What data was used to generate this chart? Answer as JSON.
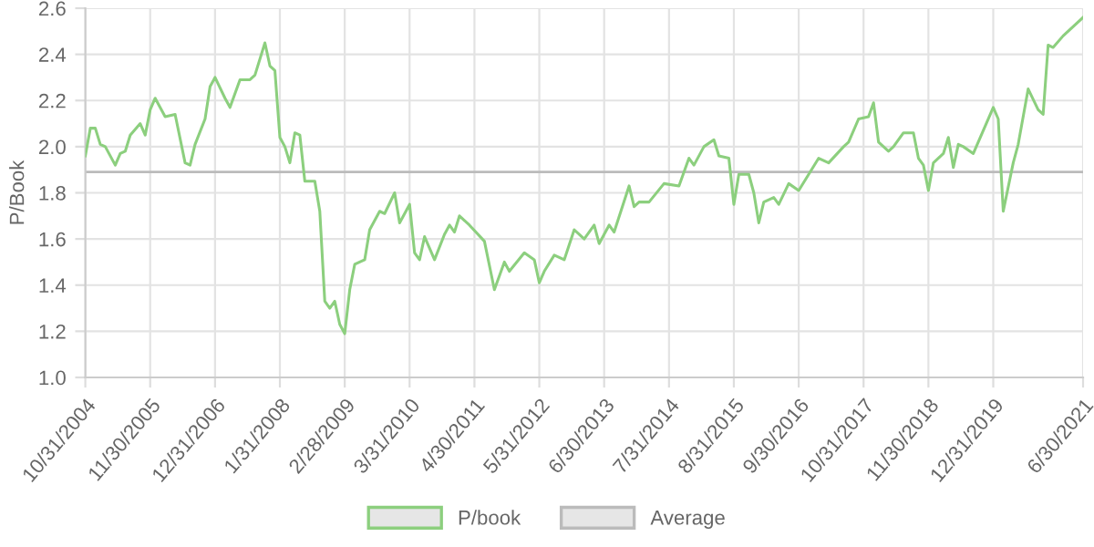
{
  "chart_data": {
    "type": "line",
    "ylabel": "P/Book",
    "x": [
      "2004-10",
      "2004-11",
      "2004-12",
      "2005-01",
      "2005-02",
      "2005-04",
      "2005-05",
      "2005-06",
      "2005-07",
      "2005-09",
      "2005-10",
      "2005-11",
      "2005-12",
      "2006-02",
      "2006-04",
      "2006-06",
      "2006-07",
      "2006-08",
      "2006-10",
      "2006-11",
      "2006-12",
      "2007-02",
      "2007-03",
      "2007-05",
      "2007-07",
      "2007-08",
      "2007-10",
      "2007-11",
      "2007-12",
      "2008-01",
      "2008-02",
      "2008-03",
      "2008-04",
      "2008-05",
      "2008-06",
      "2008-08",
      "2008-09",
      "2008-10",
      "2008-11",
      "2008-12",
      "2009-01",
      "2009-02",
      "2009-03",
      "2009-04",
      "2009-06",
      "2009-07",
      "2009-09",
      "2009-10",
      "2009-12",
      "2010-01",
      "2010-03",
      "2010-04",
      "2010-05",
      "2010-06",
      "2010-08",
      "2010-10",
      "2010-11",
      "2010-12",
      "2011-01",
      "2011-03",
      "2011-06",
      "2011-08",
      "2011-10",
      "2011-11",
      "2012-02",
      "2012-04",
      "2012-05",
      "2012-06",
      "2012-08",
      "2012-10",
      "2012-12",
      "2013-02",
      "2013-04",
      "2013-05",
      "2013-07",
      "2013-08",
      "2013-11",
      "2013-12",
      "2014-01",
      "2014-03",
      "2014-06",
      "2014-09",
      "2014-11",
      "2014-12",
      "2015-02",
      "2015-04",
      "2015-05",
      "2015-07",
      "2015-08",
      "2015-09",
      "2015-11",
      "2015-12",
      "2016-01",
      "2016-02",
      "2016-04",
      "2016-05",
      "2016-07",
      "2016-09",
      "2017-01",
      "2017-03",
      "2017-06",
      "2017-07",
      "2017-09",
      "2017-11",
      "2017-12",
      "2018-01",
      "2018-03",
      "2018-04",
      "2018-06",
      "2018-08",
      "2018-09",
      "2018-10",
      "2018-11",
      "2018-12",
      "2019-02",
      "2019-03",
      "2019-04",
      "2019-05",
      "2019-06",
      "2019-08",
      "2019-12",
      "2020-01",
      "2020-02",
      "2020-04",
      "2020-05",
      "2020-07",
      "2020-09",
      "2020-10",
      "2020-11",
      "2020-12",
      "2021-02",
      "2021-06"
    ],
    "series": [
      {
        "name": "P/book",
        "color": "#8ccf7e",
        "values": [
          1.96,
          2.08,
          2.08,
          2.01,
          2.0,
          1.92,
          1.97,
          1.98,
          2.05,
          2.1,
          2.05,
          2.16,
          2.21,
          2.13,
          2.14,
          1.93,
          1.92,
          2.01,
          2.12,
          2.26,
          2.3,
          2.21,
          2.17,
          2.29,
          2.29,
          2.31,
          2.45,
          2.35,
          2.33,
          2.04,
          2.0,
          1.93,
          2.06,
          2.05,
          1.85,
          1.85,
          1.72,
          1.33,
          1.3,
          1.33,
          1.23,
          1.19,
          1.38,
          1.49,
          1.51,
          1.64,
          1.72,
          1.71,
          1.8,
          1.67,
          1.75,
          1.54,
          1.51,
          1.61,
          1.51,
          1.62,
          1.66,
          1.63,
          1.7,
          1.66,
          1.59,
          1.38,
          1.5,
          1.46,
          1.54,
          1.51,
          1.41,
          1.46,
          1.53,
          1.51,
          1.64,
          1.6,
          1.66,
          1.58,
          1.66,
          1.63,
          1.83,
          1.74,
          1.76,
          1.76,
          1.84,
          1.83,
          1.95,
          1.92,
          2.0,
          2.03,
          1.96,
          1.95,
          1.75,
          1.88,
          1.88,
          1.8,
          1.67,
          1.76,
          1.78,
          1.75,
          1.84,
          1.81,
          1.95,
          1.93,
          2.0,
          2.02,
          2.12,
          2.13,
          2.19,
          2.02,
          1.98,
          2.0,
          2.06,
          2.06,
          1.95,
          1.92,
          1.81,
          1.93,
          1.97,
          2.04,
          1.91,
          2.01,
          2.0,
          1.97,
          2.17,
          2.12,
          1.72,
          1.93,
          2.01,
          2.25,
          2.16,
          2.14,
          2.44,
          2.43,
          2.48,
          2.56
        ]
      }
    ],
    "ref_lines": [
      {
        "axis": "y",
        "value": 1.89,
        "label": "Average",
        "color": "#bbbbbb"
      }
    ],
    "xlim": [
      "2004-10",
      "2021-06"
    ],
    "xticks": [
      {
        "value": "2004-10",
        "label": "10/31/2004"
      },
      {
        "value": "2005-11",
        "label": "11/30/2005"
      },
      {
        "value": "2006-12",
        "label": "12/31/2006"
      },
      {
        "value": "2008-01",
        "label": "1/31/2008"
      },
      {
        "value": "2009-02",
        "label": "2/28/2009"
      },
      {
        "value": "2010-03",
        "label": "3/31/2010"
      },
      {
        "value": "2011-04",
        "label": "4/30/2011"
      },
      {
        "value": "2012-05",
        "label": "5/31/2012"
      },
      {
        "value": "2013-06",
        "label": "6/30/2013"
      },
      {
        "value": "2014-07",
        "label": "7/31/2014"
      },
      {
        "value": "2015-08",
        "label": "8/31/2015"
      },
      {
        "value": "2016-09",
        "label": "9/30/2016"
      },
      {
        "value": "2017-10",
        "label": "10/31/2017"
      },
      {
        "value": "2018-11",
        "label": "11/30/2018"
      },
      {
        "value": "2019-12",
        "label": "12/31/2019"
      },
      {
        "value": "2021-06",
        "label": "6/30/2021"
      }
    ],
    "ylim": [
      1.0,
      2.6
    ],
    "yticks": [
      {
        "value": 1.0,
        "label": "1.0"
      },
      {
        "value": 1.2,
        "label": "1.2"
      },
      {
        "value": 1.4,
        "label": "1.4"
      },
      {
        "value": 1.6,
        "label": "1.6"
      },
      {
        "value": 1.8,
        "label": "1.8"
      },
      {
        "value": 2.0,
        "label": "2.0"
      },
      {
        "value": 2.2,
        "label": "2.2"
      },
      {
        "value": 2.4,
        "label": "2.4"
      },
      {
        "value": 2.6,
        "label": "2.6"
      }
    ],
    "grid": true,
    "legend": "bottom",
    "marker": "none",
    "line_style": "solid"
  }
}
